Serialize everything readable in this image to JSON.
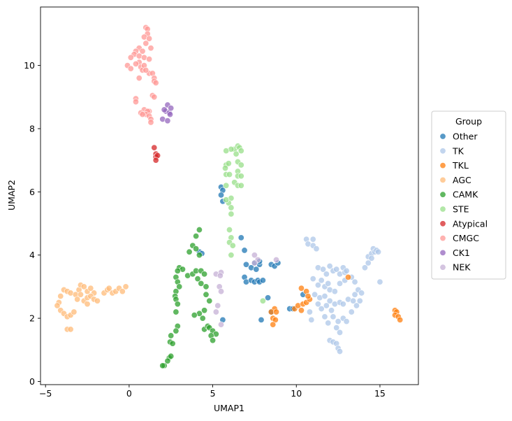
{
  "chart_data": {
    "type": "scatter",
    "xlabel": "UMAP1",
    "ylabel": "UMAP2",
    "xlim": [
      -5.3,
      17.3
    ],
    "ylim": [
      -0.1,
      11.85
    ],
    "xticks": [
      -5,
      0,
      5,
      10,
      15
    ],
    "yticks": [
      0,
      2,
      4,
      6,
      8,
      10
    ],
    "grid": false,
    "legend": {
      "title": "Group",
      "placement": "outside-right"
    },
    "series": [
      {
        "name": "Other",
        "color": "#1f77b4",
        "points": [
          [
            5.5,
            6.15
          ],
          [
            5.6,
            6.05
          ],
          [
            5.5,
            5.9
          ],
          [
            5.6,
            5.7
          ],
          [
            6.7,
            4.55
          ],
          [
            6.9,
            4.15
          ],
          [
            5.6,
            1.95
          ],
          [
            7.0,
            3.7
          ],
          [
            7.3,
            3.6
          ],
          [
            7.5,
            3.75
          ],
          [
            7.8,
            3.7
          ],
          [
            7.6,
            3.55
          ],
          [
            7.8,
            3.8
          ],
          [
            6.9,
            3.3
          ],
          [
            7.0,
            3.15
          ],
          [
            7.3,
            3.2
          ],
          [
            7.5,
            3.15
          ],
          [
            7.7,
            3.2
          ],
          [
            7.8,
            3.15
          ],
          [
            8.0,
            3.2
          ],
          [
            8.3,
            2.65
          ],
          [
            8.5,
            3.7
          ],
          [
            8.7,
            3.65
          ],
          [
            8.9,
            3.75
          ],
          [
            9.6,
            2.3
          ],
          [
            9.8,
            2.3
          ],
          [
            10.4,
            2.75
          ],
          [
            7.9,
            1.95
          ],
          [
            4.2,
            4.1
          ],
          [
            4.35,
            4.05
          ],
          [
            8.5,
            2.2
          ]
        ]
      },
      {
        "name": "TK",
        "color": "#aec7e8",
        "points": [
          [
            10.6,
            4.5
          ],
          [
            10.7,
            4.35
          ],
          [
            11.0,
            4.5
          ],
          [
            11.0,
            4.3
          ],
          [
            11.2,
            4.2
          ],
          [
            11.3,
            3.6
          ],
          [
            11.6,
            3.55
          ],
          [
            11.8,
            3.4
          ],
          [
            12.0,
            3.65
          ],
          [
            12.2,
            3.5
          ],
          [
            12.4,
            3.55
          ],
          [
            12.6,
            3.4
          ],
          [
            12.8,
            3.6
          ],
          [
            12.9,
            3.45
          ],
          [
            13.0,
            3.5
          ],
          [
            11.0,
            3.25
          ],
          [
            11.3,
            3.05
          ],
          [
            11.5,
            3.2
          ],
          [
            11.7,
            3.0
          ],
          [
            11.9,
            3.1
          ],
          [
            12.0,
            2.9
          ],
          [
            12.3,
            2.85
          ],
          [
            12.6,
            3.1
          ],
          [
            12.9,
            3.2
          ],
          [
            13.3,
            3.3
          ],
          [
            13.5,
            3.15
          ],
          [
            11.1,
            2.75
          ],
          [
            11.4,
            2.65
          ],
          [
            11.7,
            2.7
          ],
          [
            12.0,
            2.55
          ],
          [
            12.3,
            2.45
          ],
          [
            12.6,
            2.5
          ],
          [
            12.8,
            2.45
          ],
          [
            13.1,
            2.6
          ],
          [
            13.4,
            2.55
          ],
          [
            13.5,
            2.75
          ],
          [
            11.3,
            2.45
          ],
          [
            11.5,
            2.3
          ],
          [
            11.8,
            2.4
          ],
          [
            12.1,
            2.25
          ],
          [
            11.7,
            2.05
          ],
          [
            11.9,
            1.85
          ],
          [
            12.2,
            2.05
          ],
          [
            12.5,
            1.9
          ],
          [
            12.8,
            2.0
          ],
          [
            13.0,
            1.9
          ],
          [
            13.3,
            2.2
          ],
          [
            13.6,
            2.4
          ],
          [
            10.8,
            2.2
          ],
          [
            10.9,
            1.95
          ],
          [
            12.4,
            1.7
          ],
          [
            12.6,
            1.55
          ],
          [
            12.0,
            1.3
          ],
          [
            12.2,
            1.25
          ],
          [
            12.4,
            1.2
          ],
          [
            12.5,
            1.05
          ],
          [
            12.6,
            0.95
          ],
          [
            14.1,
            3.6
          ],
          [
            14.3,
            3.75
          ],
          [
            14.3,
            3.95
          ],
          [
            14.5,
            4.05
          ],
          [
            14.6,
            4.2
          ],
          [
            14.7,
            4.1
          ],
          [
            14.8,
            4.15
          ],
          [
            14.9,
            4.1
          ],
          [
            14.5,
            3.9
          ],
          [
            15.0,
            3.15
          ],
          [
            13.7,
            2.9
          ],
          [
            13.8,
            2.55
          ],
          [
            13.9,
            2.8
          ]
        ]
      },
      {
        "name": "TKL",
        "color": "#ff7f0e",
        "points": [
          [
            8.7,
            2.3
          ],
          [
            8.5,
            2.2
          ],
          [
            8.8,
            2.2
          ],
          [
            8.6,
            2.0
          ],
          [
            8.75,
            1.95
          ],
          [
            8.6,
            1.8
          ],
          [
            9.9,
            2.3
          ],
          [
            10.1,
            2.4
          ],
          [
            10.3,
            2.25
          ],
          [
            10.4,
            2.45
          ],
          [
            10.6,
            2.5
          ],
          [
            10.8,
            2.6
          ],
          [
            10.3,
            2.95
          ],
          [
            10.6,
            2.85
          ],
          [
            10.7,
            2.7
          ],
          [
            13.1,
            3.3
          ],
          [
            15.9,
            2.25
          ],
          [
            16.0,
            2.2
          ],
          [
            15.9,
            2.1
          ],
          [
            16.1,
            2.05
          ],
          [
            16.2,
            1.95
          ]
        ]
      },
      {
        "name": "AGC",
        "color": "#ffbb78",
        "points": [
          [
            -4.2,
            2.5
          ],
          [
            -4.1,
            2.7
          ],
          [
            -3.9,
            2.9
          ],
          [
            -3.7,
            2.85
          ],
          [
            -3.5,
            2.8
          ],
          [
            -4.3,
            2.4
          ],
          [
            -4.1,
            2.25
          ],
          [
            -3.9,
            2.15
          ],
          [
            -3.7,
            2.05
          ],
          [
            -3.5,
            2.1
          ],
          [
            -3.3,
            2.2
          ],
          [
            -3.7,
            1.65
          ],
          [
            -3.5,
            1.65
          ],
          [
            -3.2,
            2.75
          ],
          [
            -3.0,
            2.9
          ],
          [
            -2.9,
            3.05
          ],
          [
            -2.7,
            3.0
          ],
          [
            -2.5,
            2.85
          ],
          [
            -2.3,
            2.95
          ],
          [
            -2.1,
            2.8
          ],
          [
            -3.1,
            2.6
          ],
          [
            -2.9,
            2.75
          ],
          [
            -2.7,
            2.55
          ],
          [
            -2.5,
            2.65
          ],
          [
            -2.3,
            2.7
          ],
          [
            -2.1,
            2.6
          ],
          [
            -1.9,
            2.55
          ],
          [
            -2.5,
            2.45
          ],
          [
            -1.5,
            2.8
          ],
          [
            -1.3,
            2.9
          ],
          [
            -1.0,
            2.8
          ],
          [
            -0.8,
            2.85
          ],
          [
            -0.6,
            2.95
          ],
          [
            -0.4,
            2.85
          ],
          [
            -0.2,
            3.0
          ],
          [
            -1.2,
            2.95
          ]
        ]
      },
      {
        "name": "CAMK",
        "color": "#2ca02c",
        "points": [
          [
            4.2,
            4.8
          ],
          [
            4.0,
            4.6
          ],
          [
            3.8,
            4.3
          ],
          [
            4.0,
            4.2
          ],
          [
            4.2,
            4.0
          ],
          [
            3.6,
            4.1
          ],
          [
            3.0,
            3.6
          ],
          [
            3.2,
            3.55
          ],
          [
            2.9,
            3.5
          ],
          [
            2.8,
            3.3
          ],
          [
            2.9,
            3.15
          ],
          [
            3.0,
            3.0
          ],
          [
            2.8,
            2.85
          ],
          [
            2.75,
            2.7
          ],
          [
            2.8,
            2.6
          ],
          [
            2.9,
            2.45
          ],
          [
            2.8,
            2.2
          ],
          [
            3.5,
            3.35
          ],
          [
            3.8,
            3.4
          ],
          [
            4.0,
            3.5
          ],
          [
            4.3,
            3.5
          ],
          [
            4.1,
            3.25
          ],
          [
            4.3,
            3.1
          ],
          [
            4.6,
            3.0
          ],
          [
            4.6,
            2.75
          ],
          [
            4.8,
            2.55
          ],
          [
            4.5,
            2.25
          ],
          [
            4.2,
            2.15
          ],
          [
            4.4,
            2.0
          ],
          [
            3.9,
            2.1
          ],
          [
            2.9,
            1.75
          ],
          [
            2.8,
            1.6
          ],
          [
            4.5,
            1.65
          ],
          [
            4.7,
            1.75
          ],
          [
            4.8,
            1.7
          ],
          [
            5.0,
            1.6
          ],
          [
            5.2,
            1.5
          ],
          [
            4.9,
            1.45
          ],
          [
            5.0,
            1.3
          ],
          [
            2.5,
            1.45
          ],
          [
            2.45,
            1.25
          ],
          [
            2.6,
            1.2
          ],
          [
            2.4,
            0.75
          ],
          [
            2.5,
            0.8
          ],
          [
            2.3,
            0.65
          ],
          [
            2.1,
            0.5
          ],
          [
            2.0,
            0.5
          ],
          [
            4.5,
            3.4
          ]
        ]
      },
      {
        "name": "STE",
        "color": "#98df8a",
        "points": [
          [
            6.3,
            7.35
          ],
          [
            6.5,
            7.45
          ],
          [
            6.6,
            7.4
          ],
          [
            6.7,
            7.3
          ],
          [
            6.4,
            7.2
          ],
          [
            6.1,
            7.35
          ],
          [
            5.8,
            7.3
          ],
          [
            6.5,
            6.95
          ],
          [
            6.7,
            6.85
          ],
          [
            5.8,
            6.85
          ],
          [
            5.95,
            6.9
          ],
          [
            5.75,
            6.75
          ],
          [
            6.5,
            6.65
          ],
          [
            6.5,
            6.5
          ],
          [
            6.7,
            6.5
          ],
          [
            5.8,
            6.55
          ],
          [
            6.0,
            6.55
          ],
          [
            6.3,
            6.3
          ],
          [
            6.5,
            6.2
          ],
          [
            6.7,
            6.2
          ],
          [
            5.8,
            6.2
          ],
          [
            6.1,
            5.8
          ],
          [
            5.95,
            5.65
          ],
          [
            6.1,
            5.5
          ],
          [
            6.1,
            5.3
          ],
          [
            6.0,
            4.8
          ],
          [
            6.1,
            4.55
          ],
          [
            6.0,
            4.4
          ],
          [
            6.2,
            4.3
          ],
          [
            6.1,
            4.0
          ],
          [
            5.8,
            5.75
          ],
          [
            8.0,
            2.55
          ]
        ]
      },
      {
        "name": "Atypical",
        "color": "#d62728",
        "points": [
          [
            1.5,
            7.4
          ],
          [
            1.6,
            7.2
          ],
          [
            1.6,
            7.1
          ],
          [
            1.7,
            7.15
          ],
          [
            1.6,
            7.0
          ]
        ]
      },
      {
        "name": "CMGC",
        "color": "#ff9896",
        "points": [
          [
            1.0,
            11.2
          ],
          [
            1.1,
            11.15
          ],
          [
            1.1,
            11.0
          ],
          [
            0.9,
            10.9
          ],
          [
            1.2,
            10.85
          ],
          [
            1.0,
            10.7
          ],
          [
            1.3,
            10.55
          ],
          [
            0.6,
            10.55
          ],
          [
            0.8,
            10.45
          ],
          [
            0.4,
            10.45
          ],
          [
            0.3,
            10.35
          ],
          [
            0.1,
            10.25
          ],
          [
            0.6,
            10.3
          ],
          [
            0.9,
            10.25
          ],
          [
            1.2,
            10.2
          ],
          [
            0.6,
            10.1
          ],
          [
            0.4,
            10.05
          ],
          [
            -0.1,
            10.0
          ],
          [
            0.1,
            9.9
          ],
          [
            0.7,
            9.95
          ],
          [
            0.8,
            9.85
          ],
          [
            1.2,
            9.75
          ],
          [
            1.4,
            9.75
          ],
          [
            1.5,
            9.6
          ],
          [
            1.5,
            9.5
          ],
          [
            1.6,
            9.45
          ],
          [
            0.9,
            10.0
          ],
          [
            0.6,
            9.6
          ],
          [
            1.0,
            9.85
          ],
          [
            1.4,
            9.05
          ],
          [
            1.5,
            9.0
          ],
          [
            0.4,
            8.95
          ],
          [
            0.4,
            8.85
          ],
          [
            0.9,
            8.6
          ],
          [
            1.2,
            8.55
          ],
          [
            1.1,
            8.55
          ],
          [
            0.7,
            8.5
          ],
          [
            1.0,
            8.45
          ],
          [
            1.2,
            8.4
          ],
          [
            1.3,
            8.3
          ],
          [
            1.3,
            8.2
          ],
          [
            0.8,
            8.45
          ]
        ]
      },
      {
        "name": "CK1",
        "color": "#9467bd",
        "points": [
          [
            2.3,
            8.75
          ],
          [
            2.2,
            8.55
          ],
          [
            2.4,
            8.5
          ],
          [
            2.5,
            8.65
          ],
          [
            2.1,
            8.6
          ],
          [
            2.0,
            8.3
          ],
          [
            2.3,
            8.25
          ],
          [
            2.45,
            8.45
          ]
        ]
      },
      {
        "name": "NEK",
        "color": "#c5b0d5",
        "points": [
          [
            5.2,
            3.4
          ],
          [
            5.5,
            3.45
          ],
          [
            5.45,
            3.35
          ],
          [
            5.4,
            3.0
          ],
          [
            5.5,
            2.85
          ],
          [
            5.3,
            2.4
          ],
          [
            5.2,
            2.2
          ],
          [
            5.5,
            1.8
          ],
          [
            7.5,
            4.0
          ],
          [
            7.7,
            3.85
          ],
          [
            7.5,
            3.75
          ],
          [
            8.8,
            3.85
          ]
        ]
      }
    ]
  }
}
